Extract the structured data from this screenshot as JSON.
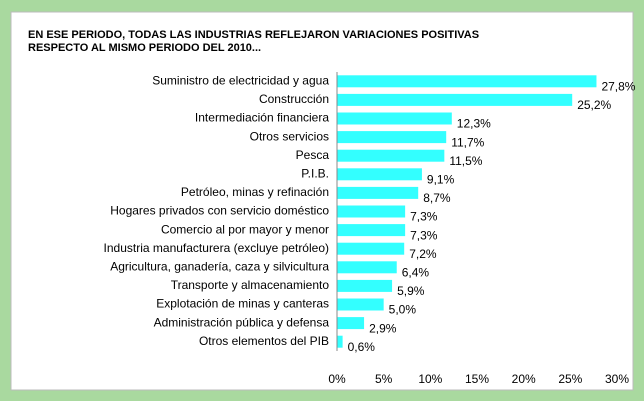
{
  "chart_data": {
    "type": "bar",
    "orientation": "horizontal",
    "title": [
      "EN ESE PERIODO, TODAS LAS INDUSTRIAS REFLEJARON VARIACIONES POSITIVAS",
      "RESPECTO AL MISMO PERIODO DEL 2010..."
    ],
    "categories": [
      "Suministro de electricidad y agua",
      "Construcción",
      "Intermediación financiera",
      "Otros servicios",
      "Pesca",
      "P.I.B.",
      "Petróleo, minas y refinación",
      "Hogares privados con servicio doméstico",
      "Comercio al por mayor y menor",
      "Industria manufacturera  (excluye petróleo)",
      "Agricultura, ganadería,  caza y silvicultura",
      "Transporte y almacenamiento",
      "Explotación de minas  y canteras",
      "Administración pública y defensa",
      "Otros elementos del PIB"
    ],
    "values": [
      27.8,
      25.2,
      12.3,
      11.7,
      11.5,
      9.1,
      8.7,
      7.3,
      7.3,
      7.2,
      6.4,
      5.9,
      5.0,
      2.9,
      0.6
    ],
    "value_labels": [
      "27,8%",
      "25,2%",
      "12,3%",
      "11,7%",
      "11,5%",
      "9,1%",
      "8,7%",
      "7,3%",
      "7,3%",
      "7,2%",
      "6,4%",
      "5,9%",
      "5,0%",
      "2,9%",
      "0,6%"
    ],
    "color": "#33ffff",
    "xlim": [
      0,
      30
    ],
    "xticks": [
      {
        "value": 0,
        "label": "0%"
      },
      {
        "value": 5,
        "label": "5%"
      },
      {
        "value": 10,
        "label": "10%"
      },
      {
        "value": 15,
        "label": "15%"
      },
      {
        "value": 20,
        "label": "20%"
      },
      {
        "value": 25,
        "label": "25%"
      },
      {
        "value": 30,
        "label": "30%"
      }
    ],
    "grid": false
  }
}
